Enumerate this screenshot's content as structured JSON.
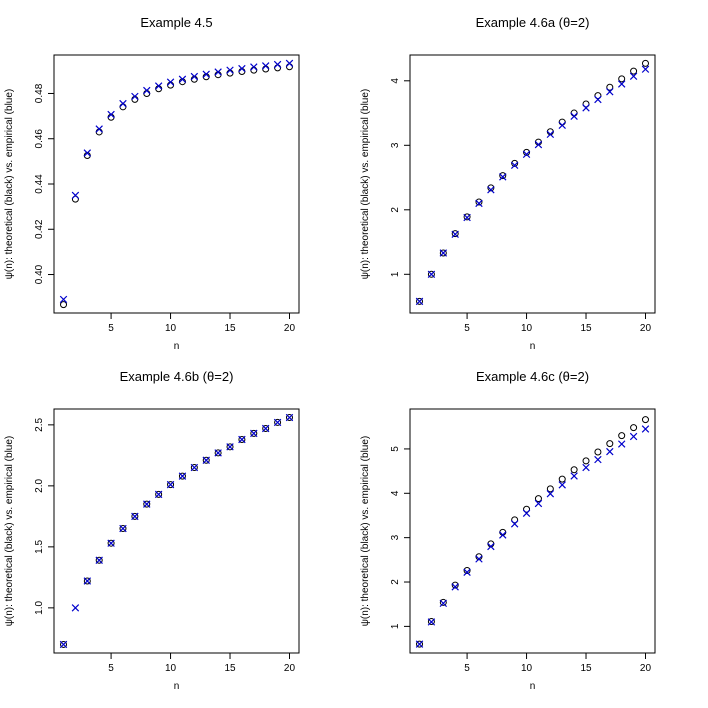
{
  "figure": {
    "background": "#ffffff"
  },
  "colors": {
    "theoretical": "#000000",
    "empirical": "#0000cc"
  },
  "chart_data": [
    {
      "type": "scatter",
      "title": "Example 4.5",
      "xlabel": "n",
      "ylabel": "ψ(n): theoretical (black) vs. empirical (blue)",
      "xlim": [
        0.2,
        20.8
      ],
      "ylim": [
        0.383,
        0.497
      ],
      "x_ticks": [
        5,
        10,
        15,
        20
      ],
      "x_tick_labels": [
        "5",
        "10",
        "15",
        "20"
      ],
      "y_ticks": [
        0.4,
        0.42,
        0.44,
        0.46,
        0.48
      ],
      "y_tick_labels": [
        "0.40",
        "0.42",
        "0.44",
        "0.46",
        "0.48"
      ],
      "grid": false,
      "x": [
        1,
        2,
        3,
        4,
        5,
        6,
        7,
        8,
        9,
        10,
        11,
        12,
        13,
        14,
        15,
        16,
        17,
        18,
        19,
        20
      ],
      "series": [
        {
          "marker": "circle",
          "color": "#000000",
          "values": [
            0.3867,
            0.4333,
            0.4526,
            0.463,
            0.4695,
            0.4741,
            0.4774,
            0.48,
            0.4821,
            0.4837,
            0.4852,
            0.4863,
            0.4874,
            0.4883,
            0.489,
            0.4897,
            0.4903,
            0.4908,
            0.4913,
            0.4918
          ]
        },
        {
          "marker": "x",
          "color": "#0000cc",
          "values": [
            0.389,
            0.435,
            0.4537,
            0.4643,
            0.4707,
            0.4755,
            0.4787,
            0.4813,
            0.4833,
            0.485,
            0.4863,
            0.4875,
            0.4885,
            0.4895,
            0.4903,
            0.491,
            0.4917,
            0.4922,
            0.4928,
            0.4933
          ]
        }
      ]
    },
    {
      "type": "scatter",
      "title": "Example 4.6a (θ=2)",
      "xlabel": "n",
      "ylabel": "ψ(n): theoretical (black) vs. empirical (blue)",
      "xlim": [
        0.2,
        20.8
      ],
      "ylim": [
        0.4,
        4.4
      ],
      "x_ticks": [
        5,
        10,
        15,
        20
      ],
      "x_tick_labels": [
        "5",
        "10",
        "15",
        "20"
      ],
      "y_ticks": [
        1,
        2,
        3,
        4
      ],
      "y_tick_labels": [
        "1",
        "2",
        "3",
        "4"
      ],
      "grid": false,
      "x": [
        1,
        2,
        3,
        4,
        5,
        6,
        7,
        8,
        9,
        10,
        11,
        12,
        13,
        14,
        15,
        16,
        17,
        18,
        19,
        20
      ],
      "series": [
        {
          "marker": "circle",
          "color": "#000000",
          "values": [
            0.58,
            1.0,
            1.33,
            1.63,
            1.89,
            2.12,
            2.34,
            2.53,
            2.72,
            2.89,
            3.05,
            3.21,
            3.36,
            3.5,
            3.64,
            3.77,
            3.9,
            4.03,
            4.15,
            4.27
          ]
        },
        {
          "marker": "x",
          "color": "#0000cc",
          "values": [
            0.58,
            1.0,
            1.33,
            1.62,
            1.88,
            2.1,
            2.31,
            2.51,
            2.69,
            2.86,
            3.01,
            3.17,
            3.31,
            3.45,
            3.58,
            3.71,
            3.83,
            3.95,
            4.07,
            4.18
          ]
        }
      ]
    },
    {
      "type": "scatter",
      "title": "Example 4.6b (θ=2)",
      "xlabel": "n",
      "ylabel": "ψ(n): theoretical (black) vs. empirical (blue)",
      "xlim": [
        0.2,
        20.8
      ],
      "ylim": [
        0.63,
        2.63
      ],
      "x_ticks": [
        5,
        10,
        15,
        20
      ],
      "x_tick_labels": [
        "5",
        "10",
        "15",
        "20"
      ],
      "y_ticks": [
        1.0,
        1.5,
        2.0,
        2.5
      ],
      "y_tick_labels": [
        "1.0",
        "1.5",
        "2.0",
        "2.5"
      ],
      "grid": false,
      "x": [
        1,
        2,
        3,
        4,
        5,
        6,
        7,
        8,
        9,
        10,
        11,
        12,
        13,
        14,
        15,
        16,
        17,
        18,
        19,
        20
      ],
      "series": [
        {
          "marker": "circle",
          "color": "#000000",
          "x": [
            1,
            3,
            4,
            5,
            6,
            7,
            8,
            9,
            10,
            11,
            12,
            13,
            14,
            15,
            16,
            17,
            18,
            19,
            20
          ],
          "values": [
            0.7,
            1.22,
            1.39,
            1.53,
            1.65,
            1.75,
            1.85,
            1.93,
            2.01,
            2.08,
            2.15,
            2.21,
            2.27,
            2.32,
            2.38,
            2.43,
            2.47,
            2.52,
            2.56
          ]
        },
        {
          "marker": "x",
          "color": "#0000cc",
          "values": [
            0.7,
            1.0,
            1.22,
            1.39,
            1.53,
            1.65,
            1.75,
            1.85,
            1.93,
            2.01,
            2.08,
            2.15,
            2.21,
            2.27,
            2.32,
            2.38,
            2.43,
            2.47,
            2.52,
            2.56
          ]
        }
      ]
    },
    {
      "type": "scatter",
      "title": "Example 4.6c (θ=2)",
      "xlabel": "n",
      "ylabel": "ψ(n): theoretical (black) vs. empirical (blue)",
      "xlim": [
        0.2,
        20.8
      ],
      "ylim": [
        0.4,
        5.9
      ],
      "x_ticks": [
        5,
        10,
        15,
        20
      ],
      "x_tick_labels": [
        "5",
        "10",
        "15",
        "20"
      ],
      "y_ticks": [
        1,
        2,
        3,
        4,
        5
      ],
      "y_tick_labels": [
        "1",
        "2",
        "3",
        "4",
        "5"
      ],
      "grid": false,
      "x": [
        1,
        2,
        3,
        4,
        5,
        6,
        7,
        8,
        9,
        10,
        11,
        12,
        13,
        14,
        15,
        16,
        17,
        18,
        19,
        20
      ],
      "series": [
        {
          "marker": "circle",
          "color": "#000000",
          "values": [
            0.6,
            1.11,
            1.54,
            1.93,
            2.26,
            2.57,
            2.86,
            3.12,
            3.4,
            3.64,
            3.88,
            4.1,
            4.32,
            4.53,
            4.73,
            4.93,
            5.12,
            5.3,
            5.48,
            5.66
          ]
        },
        {
          "marker": "x",
          "color": "#0000cc",
          "values": [
            0.6,
            1.1,
            1.52,
            1.89,
            2.22,
            2.52,
            2.8,
            3.06,
            3.31,
            3.55,
            3.77,
            3.99,
            4.19,
            4.39,
            4.58,
            4.76,
            4.94,
            5.11,
            5.28,
            5.45
          ]
        }
      ]
    }
  ]
}
